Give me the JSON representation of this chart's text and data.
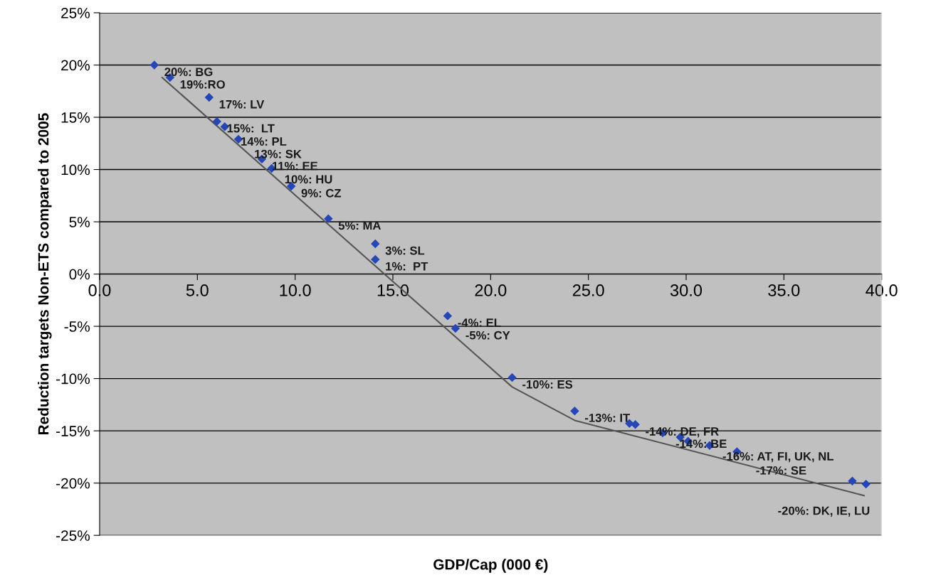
{
  "chart_data": {
    "type": "scatter",
    "xlabel": "GDP/Cap (000 €)",
    "ylabel": "Reduction targets Non-ETS compared to 2005",
    "series": [
      {
        "color": "#2446b8",
        "marker": "diamond",
        "x": [
          2.8,
          3.6,
          5.6,
          6.0,
          6.4,
          7.1,
          8.3,
          8.8,
          9.8,
          11.7,
          14.1,
          14.1,
          17.8,
          18.2,
          21.1,
          24.3,
          27.1,
          27.4,
          28.8,
          29.7,
          30.1,
          31.2,
          32.6,
          38.5,
          39.2
        ],
        "values": [
          20.0,
          18.8,
          16.9,
          14.6,
          14.1,
          12.9,
          11.0,
          10.1,
          8.4,
          5.3,
          2.9,
          1.4,
          -4.0,
          -5.2,
          -9.9,
          -13.1,
          -14.3,
          -14.4,
          -15.2,
          -15.6,
          -16.0,
          -16.4,
          -17.0,
          -19.8,
          -20.1
        ]
      },
      {
        "type": "line",
        "color": "#555555",
        "marker": "none",
        "x": [
          3.2,
          21.1,
          24.3,
          39.1
        ],
        "values": [
          18.8,
          -10.8,
          -14.0,
          -21.2
        ]
      }
    ],
    "xlim": [
      0,
      40
    ],
    "xticks": [
      {
        "value": 0,
        "label": "0.0"
      },
      {
        "value": 5,
        "label": "5.0"
      },
      {
        "value": 10,
        "label": "10.0"
      },
      {
        "value": 15,
        "label": "15.0"
      },
      {
        "value": 20,
        "label": "20.0"
      },
      {
        "value": 25,
        "label": "25.0"
      },
      {
        "value": 30,
        "label": "30.0"
      },
      {
        "value": 35,
        "label": "35.0"
      },
      {
        "value": 40,
        "label": "40.0"
      }
    ],
    "ylim": [
      -25,
      25
    ],
    "yticks": [
      {
        "value": -25,
        "label": "-25%"
      },
      {
        "value": -20,
        "label": "-20%"
      },
      {
        "value": -15,
        "label": "-15%"
      },
      {
        "value": -10,
        "label": "-10%"
      },
      {
        "value": -5,
        "label": "-5%"
      },
      {
        "value": 0,
        "label": "0%"
      },
      {
        "value": 5,
        "label": "5%"
      },
      {
        "value": 10,
        "label": "10%"
      },
      {
        "value": 15,
        "label": "15%"
      },
      {
        "value": 20,
        "label": "20%"
      },
      {
        "value": 25,
        "label": "25%"
      }
    ],
    "grid": "y",
    "legend": false,
    "annotations": [
      {
        "text": "20%: BG",
        "x": 2.8,
        "y": 20.0
      },
      {
        "text": "19%:RO",
        "x": 3.6,
        "y": 18.8
      },
      {
        "text": "17%: LV",
        "x": 5.6,
        "y": 16.9
      },
      {
        "text": "15%:  LT",
        "x": 6.0,
        "y": 14.6
      },
      {
        "text": "14%: PL",
        "x": 6.4,
        "y": 14.1
      },
      {
        "text": "13%: SK",
        "x": 7.1,
        "y": 12.9
      },
      {
        "text": "11%: EE",
        "x": 8.3,
        "y": 11.0
      },
      {
        "text": "10%: HU",
        "x": 8.8,
        "y": 10.1
      },
      {
        "text": "9%: CZ",
        "x": 9.8,
        "y": 8.4
      },
      {
        "text": "5%: MA",
        "x": 11.7,
        "y": 5.3
      },
      {
        "text": "3%: SL",
        "x": 14.1,
        "y": 2.9
      },
      {
        "text": "1%:  PT",
        "x": 14.1,
        "y": 1.4
      },
      {
        "text": "-4%: EL",
        "x": 17.8,
        "y": -4.0
      },
      {
        "text": "-5%: CY",
        "x": 18.2,
        "y": -5.2
      },
      {
        "text": "-10%: ES",
        "x": 21.1,
        "y": -9.9
      },
      {
        "text": "-13%: IT",
        "x": 24.3,
        "y": -13.1
      },
      {
        "text": "-14%: DE, FR",
        "x": 27.4,
        "y": -14.4
      },
      {
        "text": "-14%: BE",
        "x": 28.8,
        "y": -15.2
      },
      {
        "text": "-16%: AT, FI, UK, NL",
        "x": 31.2,
        "y": -16.4
      },
      {
        "text": "-17%: SE",
        "x": 32.6,
        "y": -17.0
      },
      {
        "text": "-20%: DK, IE, LU",
        "x": 39.2,
        "y": -20.1
      }
    ]
  }
}
